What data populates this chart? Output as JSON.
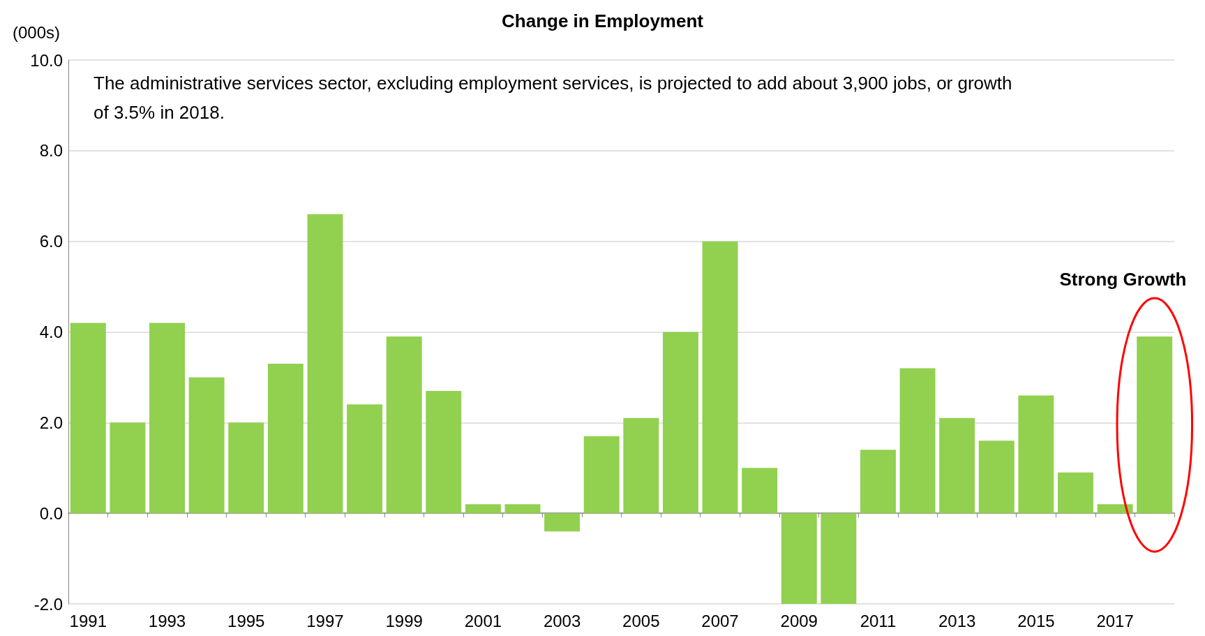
{
  "chart_data": {
    "type": "bar",
    "title": "Change in Employment",
    "ylabel": "(000s)",
    "categories": [
      "1991",
      null,
      "1993",
      null,
      "1995",
      null,
      "1997",
      null,
      "1999",
      null,
      "2001",
      null,
      "2003",
      null,
      "2005",
      null,
      "2007",
      null,
      "2009",
      null,
      "2011",
      null,
      "2013",
      null,
      "2015",
      null,
      "2017",
      null
    ],
    "values": [
      4.2,
      2.0,
      4.2,
      3.0,
      2.0,
      3.3,
      6.6,
      2.4,
      3.9,
      2.7,
      0.2,
      0.2,
      -0.4,
      1.7,
      2.1,
      4.0,
      6.0,
      1.0,
      -2.0,
      -2.0,
      1.4,
      3.2,
      2.1,
      1.6,
      2.6,
      0.9,
      0.2,
      3.9
    ],
    "color": "#92d050",
    "ylim": [
      -2,
      10
    ],
    "yticks": [
      {
        "value": -2,
        "label": "-2.0"
      },
      {
        "value": 0,
        "label": "0.0"
      },
      {
        "value": 2,
        "label": "2.0"
      },
      {
        "value": 4,
        "label": "4.0"
      },
      {
        "value": 6,
        "label": "6.0"
      },
      {
        "value": 8,
        "label": "8.0"
      },
      {
        "value": 10,
        "label": "10.0"
      }
    ],
    "grid": "y",
    "annotations": [
      "The administrative services sector, excluding employment services, is projected to add about 3,900 jobs, or growth of 3.5% in 2018.",
      "Strong Growth"
    ]
  }
}
